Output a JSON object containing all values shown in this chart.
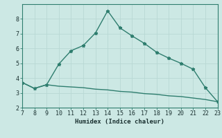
{
  "x": [
    7,
    8,
    9,
    10,
    11,
    12,
    13,
    14,
    15,
    16,
    17,
    18,
    19,
    20,
    21,
    22,
    23
  ],
  "y_main": [
    3.7,
    3.3,
    3.55,
    4.95,
    5.85,
    6.2,
    7.05,
    8.55,
    7.4,
    6.85,
    6.35,
    5.75,
    5.35,
    5.0,
    4.6,
    3.35,
    2.4
  ],
  "y_lower": [
    3.7,
    3.3,
    3.55,
    3.45,
    3.4,
    3.35,
    3.25,
    3.2,
    3.1,
    3.05,
    2.95,
    2.9,
    2.8,
    2.75,
    2.65,
    2.55,
    2.4
  ],
  "line_color": "#2e7d6e",
  "bg_color": "#cce8e4",
  "grid_color": "#b8d8d4",
  "xlabel": "Humidex (Indice chaleur)",
  "ylim": [
    2,
    9
  ],
  "xlim": [
    7,
    23
  ],
  "yticks": [
    2,
    3,
    4,
    5,
    6,
    7,
    8
  ],
  "xticks": [
    7,
    8,
    9,
    10,
    11,
    12,
    13,
    14,
    15,
    16,
    17,
    18,
    19,
    20,
    21,
    22,
    23
  ],
  "xlabel_fontsize": 6.5,
  "tick_fontsize": 6.0,
  "marker": "*",
  "marker_size": 3.5,
  "linewidth": 1.0
}
